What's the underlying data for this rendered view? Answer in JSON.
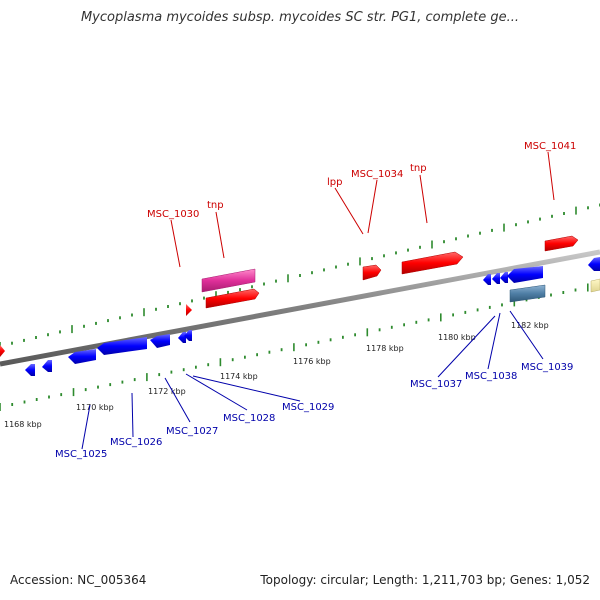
{
  "title": "Mycoplasma mycoides subsp. mycoides SC str. PG1, complete ge...",
  "footer": {
    "accession": "Accession: NC_005364",
    "stats": "Topology: circular; Length: 1,211,703 bp; Genes: 1,052"
  },
  "colors": {
    "forward_gene": "#ff0000",
    "reverse_gene": "#0000ff",
    "pink_gene": "#e0309a",
    "steel_gene": "#4f7fa6",
    "yellow_gene": "#f3eba0",
    "label_forward": "#cc0000",
    "label_reverse": "#0000aa",
    "tick": "#2e8b2e",
    "backbone": "#888888"
  },
  "ruler_labels": [
    "1168 kbp",
    "1170 kbp",
    "1172 kbp",
    "1174 kbp",
    "1176 kbp",
    "1178 kbp",
    "1180 kbp",
    "1182 kbp"
  ],
  "top_labels": [
    "MSC_1030",
    "tnp",
    "lpp",
    "MSC_1034",
    "tnp",
    "MSC_1041"
  ],
  "bottom_labels": [
    "MSC_1025",
    "MSC_1026",
    "MSC_1027",
    "MSC_1028",
    "MSC_1029",
    "MSC_1037",
    "MSC_1038",
    "MSC_1039"
  ]
}
